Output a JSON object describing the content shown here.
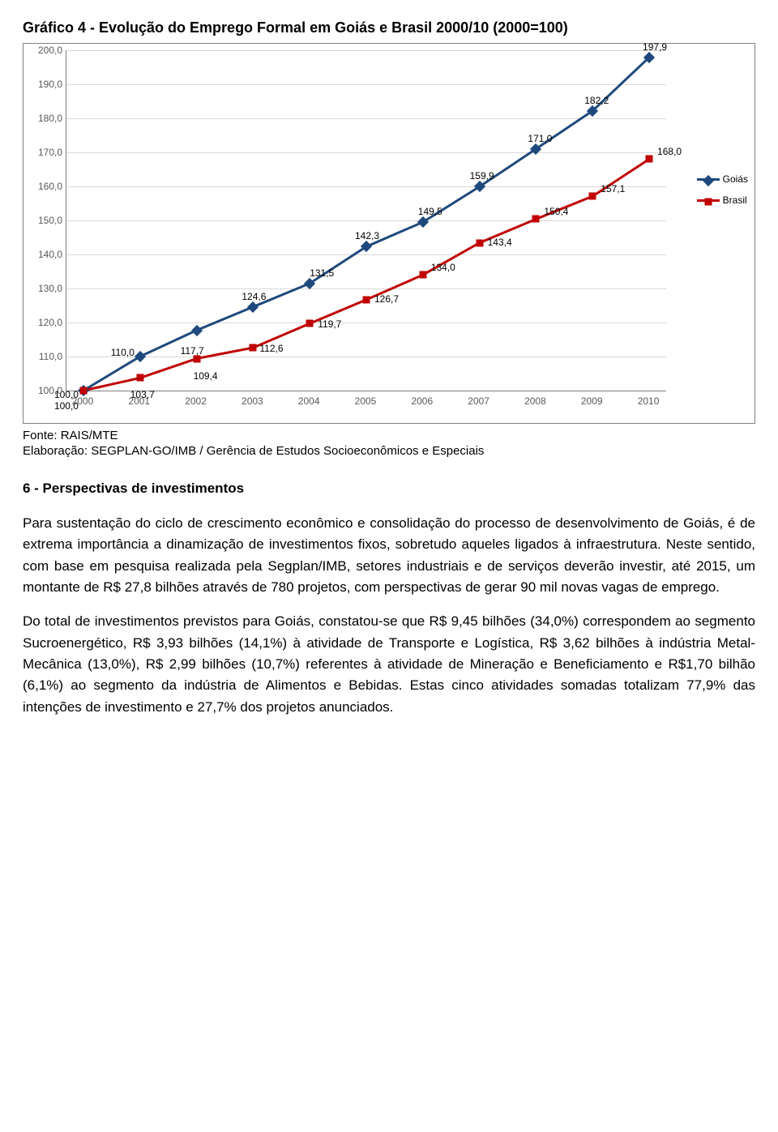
{
  "chart": {
    "title": "Gráfico 4 - Evolução do Emprego Formal em Goiás e Brasil 2000/10 (2000=100)",
    "type": "line",
    "background_color": "#ffffff",
    "grid_color": "#d9d9d9",
    "axis_color": "#808080",
    "ylim": [
      100,
      200
    ],
    "ytick_step": 10,
    "yticks": [
      "100,0",
      "110,0",
      "120,0",
      "130,0",
      "140,0",
      "150,0",
      "160,0",
      "170,0",
      "180,0",
      "190,0",
      "200,0"
    ],
    "xcategories": [
      "2000",
      "2001",
      "2002",
      "2003",
      "2004",
      "2005",
      "2006",
      "2007",
      "2008",
      "2009",
      "2010"
    ],
    "label_fontsize": 12,
    "legend": [
      {
        "label": "Goiás",
        "color": "#1f497d",
        "marker": "diamond"
      },
      {
        "label": "Brasil",
        "color": "#c00000",
        "marker": "square"
      }
    ],
    "series": {
      "goias": {
        "color": "#1f497d",
        "line_width": 3,
        "marker": "diamond",
        "marker_size": 10,
        "values": [
          100.0,
          110.0,
          117.7,
          124.6,
          131.5,
          142.3,
          149.5,
          159.9,
          171.0,
          182.2,
          197.9
        ],
        "labels": [
          "100,0",
          "110,0",
          "117,7",
          "124,6",
          "131,5",
          "142,3",
          "149,5",
          "159,9",
          "171,0",
          "182,2",
          "197,9"
        ]
      },
      "brasil": {
        "color": "#c00000",
        "line_width": 3,
        "marker": "square",
        "marker_size": 9,
        "values": [
          100.0,
          103.7,
          109.4,
          112.6,
          119.7,
          126.7,
          134.0,
          143.4,
          150.4,
          157.1,
          168.0
        ],
        "labels": [
          "100,0",
          "103,7",
          "109,4",
          "112,6",
          "119,7",
          "126,7",
          "134,0",
          "143,4",
          "150,4",
          "157,1",
          "168,0"
        ]
      }
    }
  },
  "source": {
    "line1": "Fonte: RAIS/MTE",
    "line2": "Elaboração: SEGPLAN-GO/IMB / Gerência de Estudos Socioeconômicos e Especiais"
  },
  "section_heading": "6 - Perspectivas de investimentos",
  "paragraphs": {
    "p1": "Para sustentação do ciclo de crescimento econômico e consolidação do processo de desenvolvimento de Goiás, é de extrema importância a dinamização de investimentos fixos, sobretudo aqueles ligados à infraestrutura. Neste sentido, com base em pesquisa realizada pela Segplan/IMB, setores industriais e de serviços deverão investir, até 2015, um montante de R$ 27,8 bilhões através de 780 projetos, com perspectivas de gerar 90 mil novas vagas de emprego.",
    "p2": "Do total de investimentos previstos para Goiás, constatou-se que R$ 9,45 bilhões (34,0%) correspondem ao segmento Sucroenergético, R$ 3,93 bilhões (14,1%) à atividade de Transporte e Logística, R$ 3,62 bilhões à indústria Metal-Mecânica (13,0%), R$ 2,99 bilhões (10,7%) referentes à atividade de Mineração e Beneficiamento e R$1,70 bilhão (6,1%) ao segmento da indústria de Alimentos e Bebidas. Estas cinco atividades somadas totalizam 77,9% das intenções de investimento e 27,7% dos projetos anunciados."
  }
}
